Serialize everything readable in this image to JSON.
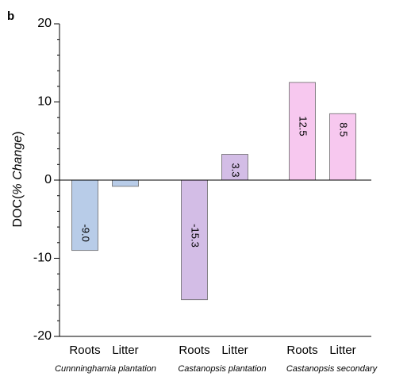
{
  "panel_label": "b",
  "chart_data": {
    "type": "bar",
    "ylabel_prefix": "DOC(",
    "ylabel_italic": "% Change",
    "ylabel_suffix": ")",
    "ylim": [
      -20,
      20
    ],
    "yticks": [
      -20,
      -10,
      0,
      10,
      20
    ],
    "yticks_labels": [
      "-20",
      "-10",
      "0",
      "10",
      "20"
    ],
    "grid": false,
    "bars": [
      {
        "group": "Cunnninghamia plantation",
        "category": "Roots",
        "value": -9.0,
        "label": "-9.0",
        "color": "#b8cce8"
      },
      {
        "group": "Cunnninghamia plantation",
        "category": "Litter",
        "value": -0.8,
        "label": "",
        "color": "#b8cce8"
      },
      {
        "group": "Castanopsis plantation",
        "category": "Roots",
        "value": -15.3,
        "label": "-15.3",
        "color": "#d3bde6"
      },
      {
        "group": "Castanopsis plantation",
        "category": "Litter",
        "value": 3.3,
        "label": "3.3",
        "color": "#d3bde6"
      },
      {
        "group": "Castanopsis secondary",
        "category": "Roots",
        "value": 12.5,
        "label": "12.5",
        "color": "#f7c8ef"
      },
      {
        "group": "Castanopsis secondary",
        "category": "Litter",
        "value": 8.5,
        "label": "8.5",
        "color": "#f7c8ef"
      }
    ],
    "groups": [
      "Cunnninghamia plantation",
      "Castanopsis plantation",
      "Castanopsis secondary"
    ]
  }
}
